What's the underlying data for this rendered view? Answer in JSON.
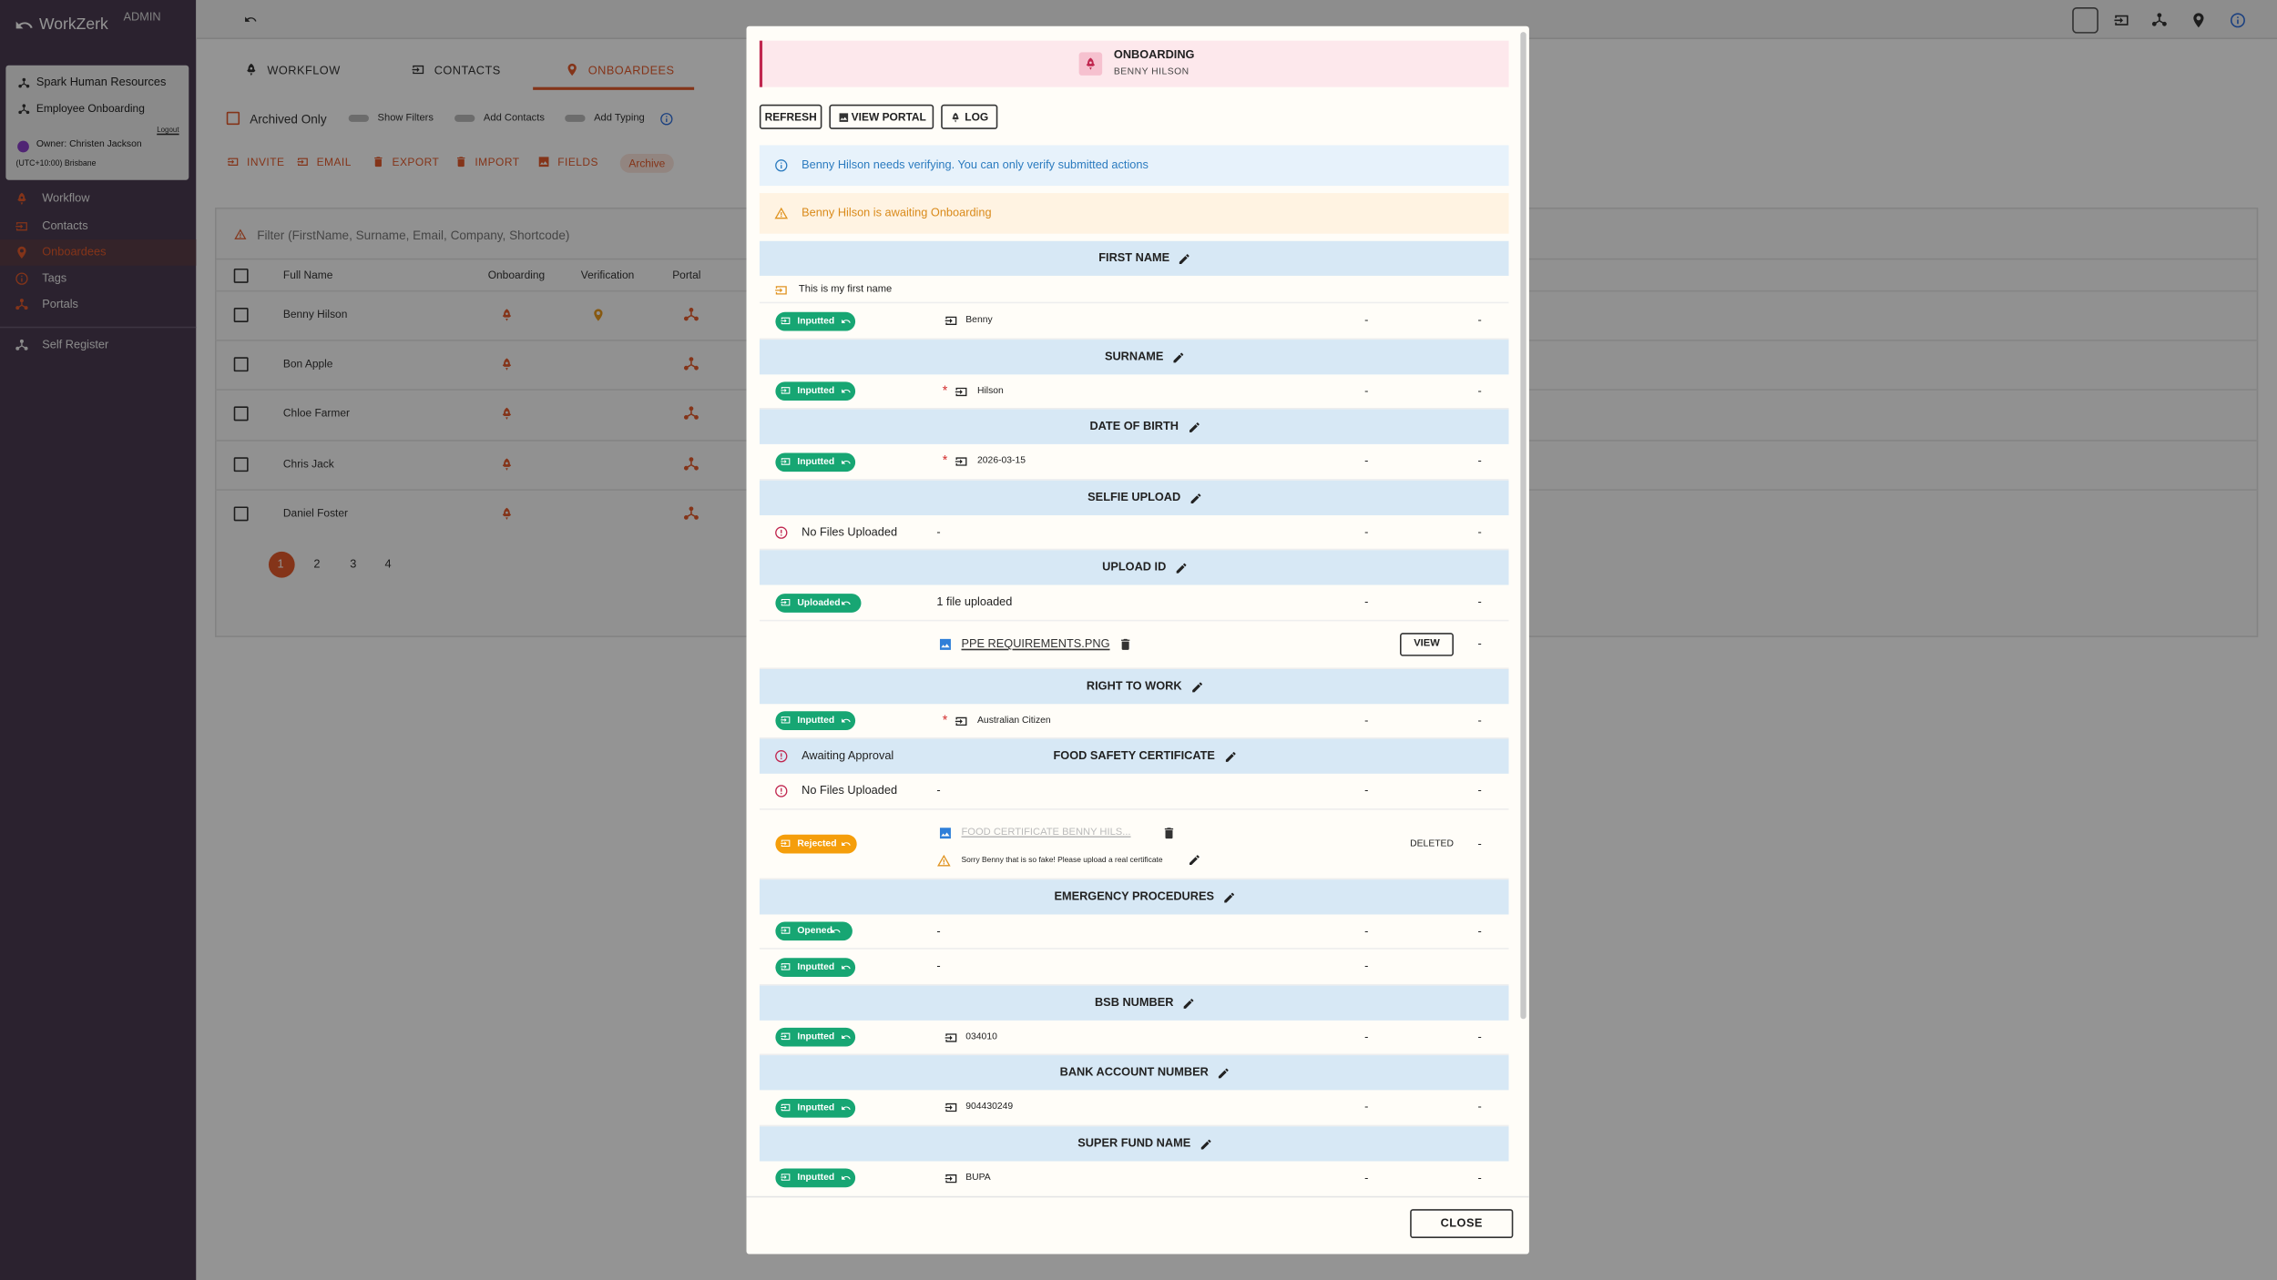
{
  "app": {
    "brand": "WorkZerk",
    "role": "ADMIN"
  },
  "org": {
    "company": "Spark Human Resources",
    "workflow": "Employee Onboarding",
    "logout": "Logout",
    "owner": "Owner: Christen Jackson",
    "timezone": "(UTC+10:00) Brisbane"
  },
  "nav": [
    "Workflow",
    "Contacts",
    "Onboardees",
    "Tags",
    "Portals"
  ],
  "self_register": "Self Register",
  "tabs": [
    "WORKFLOW",
    "CONTACTS",
    "ONBOARDEES"
  ],
  "toggles": [
    "Archived Only",
    "Show Filters",
    "Add Contacts",
    "Add Typing"
  ],
  "actions": [
    "INVITE",
    "EMAIL",
    "EXPORT",
    "IMPORT",
    "FIELDS",
    "Archive"
  ],
  "filter_placeholder": "Filter (FirstName, Surname, Email, Company, Shortcode)",
  "table": {
    "headers": [
      "Full Name",
      "Onboarding",
      "Verification",
      "Portal"
    ],
    "rows": [
      "Benny Hilson",
      "Bon Apple",
      "Chloe Farmer",
      "Chris Jack",
      "Daniel Foster"
    ]
  },
  "pages": [
    "1",
    "2",
    "3",
    "4"
  ],
  "modal": {
    "title": "ONBOARDING",
    "subtitle": "BENNY HILSON",
    "buttons": [
      "REFRESH",
      "VIEW PORTAL",
      "LOG"
    ],
    "info": "Benny Hilson needs verifying. You can only verify submitted actions",
    "warning": "Benny Hilson is awaiting Onboarding",
    "close": "CLOSE",
    "sections": [
      {
        "title": "FIRST NAME",
        "note": "This is my first name",
        "rows": [
          {
            "status": "Inputted",
            "status_color": "#17a673",
            "input": true,
            "value": "Benny",
            "col3": "-",
            "col4": "-"
          }
        ]
      },
      {
        "title": "SURNAME",
        "rows": [
          {
            "status": "Inputted",
            "status_color": "#17a673",
            "required": true,
            "input": true,
            "value": "Hilson",
            "col3": "-",
            "col4": "-"
          }
        ]
      },
      {
        "title": "DATE OF BIRTH",
        "rows": [
          {
            "status": "Inputted",
            "status_color": "#17a673",
            "required": true,
            "input": true,
            "value": "2026-03-15",
            "col3": "-",
            "col4": "-"
          }
        ]
      },
      {
        "title": "SELFIE UPLOAD",
        "rows": [
          {
            "status": "No Files Uploaded",
            "value": "-",
            "col3": "-",
            "col4": "-"
          }
        ]
      },
      {
        "title": "UPLOAD ID",
        "rows": [
          {
            "status": "Uploaded",
            "status_color": "#17a673",
            "value": "1 file uploaded",
            "col3": "-",
            "col4": "-"
          },
          {
            "file": "PPE REQUIREMENTS.PNG",
            "button": "VIEW",
            "col4": "-"
          }
        ]
      },
      {
        "title": "RIGHT TO WORK",
        "rows": [
          {
            "status": "Inputted",
            "status_color": "#17a673",
            "required": true,
            "input": true,
            "value": "Australian Citizen",
            "col3": "-",
            "col4": "-"
          }
        ]
      },
      {
        "title": "FOOD SAFETY CERTIFICATE",
        "header_status": "Awaiting Approval",
        "rows": [
          {
            "status": "No Files Uploaded",
            "value": "-",
            "col3": "-",
            "col4": "-"
          },
          {
            "status": "Rejected",
            "status_color": "#f59e0b",
            "file": "FOOD CERTIFICATE BENNY HILS...",
            "deleted": true,
            "comment": "Sorry Benny that is so fake! Please upload a real certificate",
            "col3": "DELETED",
            "col4": "-"
          }
        ]
      },
      {
        "title": "EMERGENCY PROCEDURES",
        "rows": [
          {
            "status": "Opened",
            "status_color": "#17a673",
            "value": "-",
            "col3": "-",
            "col4": "-"
          },
          {
            "status": "Inputted",
            "status_color": "#17a673",
            "value": "-",
            "col3": "-"
          }
        ]
      },
      {
        "title": "BSB NUMBER",
        "rows": [
          {
            "status": "Inputted",
            "status_color": "#17a673",
            "input": true,
            "value": "034010",
            "col3": "-",
            "col4": "-"
          }
        ]
      },
      {
        "title": "BANK ACCOUNT NUMBER",
        "rows": [
          {
            "status": "Inputted",
            "status_color": "#17a673",
            "input": true,
            "value": "904430249",
            "col3": "-",
            "col4": "-"
          }
        ]
      },
      {
        "title": "SUPER FUND NAME",
        "rows": [
          {
            "status": "Inputted",
            "status_color": "#17a673",
            "input": true,
            "value": "BUPA",
            "col3": "-",
            "col4": "-"
          }
        ]
      }
    ]
  }
}
